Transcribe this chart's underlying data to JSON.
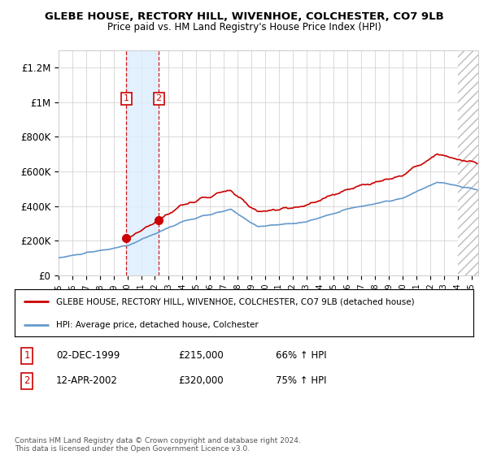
{
  "title": "GLEBE HOUSE, RECTORY HILL, WIVENHOE, COLCHESTER, CO7 9LB",
  "subtitle": "Price paid vs. HM Land Registry's House Price Index (HPI)",
  "ylim": [
    0,
    1300000
  ],
  "yticks": [
    0,
    200000,
    400000,
    600000,
    800000,
    1000000,
    1200000
  ],
  "ytick_labels": [
    "£0",
    "£200K",
    "£400K",
    "£600K",
    "£800K",
    "£1M",
    "£1.2M"
  ],
  "house_color": "#cc0000",
  "hpi_color": "#6699cc",
  "purchase1_date": 1999.92,
  "purchase1_price": 215000,
  "purchase2_date": 2002.28,
  "purchase2_price": 320000,
  "legend_house": "GLEBE HOUSE, RECTORY HILL, WIVENHOE, COLCHESTER, CO7 9LB (detached house)",
  "legend_hpi": "HPI: Average price, detached house, Colchester",
  "table_row1": [
    "1",
    "02-DEC-1999",
    "£215,000",
    "66% ↑ HPI"
  ],
  "table_row2": [
    "2",
    "12-APR-2002",
    "£320,000",
    "75% ↑ HPI"
  ],
  "footer": "Contains HM Land Registry data © Crown copyright and database right 2024.\nThis data is licensed under the Open Government Licence v3.0.",
  "xmin": 1995.0,
  "xmax": 2025.5,
  "hatch_xmin": 2024.0,
  "hatch_xmax": 2025.5
}
